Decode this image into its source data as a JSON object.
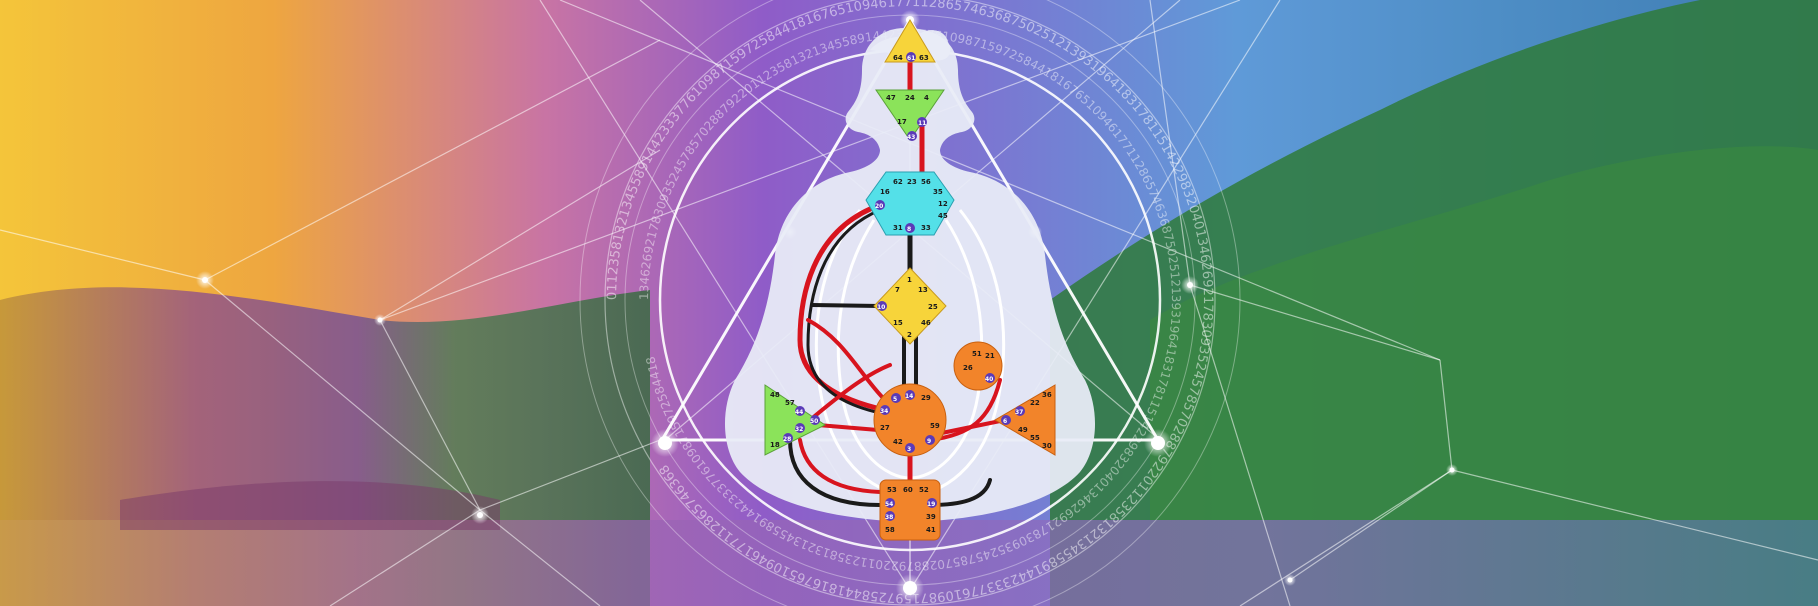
{
  "colors": {
    "sky_warm": "#f2c23a",
    "sky_violet": "#8a5ac8",
    "sky_blue": "#5a9ad8",
    "mountain_green": "#2d7a3a",
    "body_fill": "#e9ecf6",
    "channel_red": "#d8141e",
    "channel_black": "#1a1a1a",
    "center_yellow": "#f7d43a",
    "center_green": "#8be35a",
    "center_cyan": "#54e0e8",
    "center_orange": "#f2842a",
    "gate_badge": "#5a3ab8"
  },
  "number_ring": {
    "outer_text": "0112358132134558914423337761098715972584418167651094617711286574636875025121393196418317811514229832040134626921783093524578570288792201123581321345589144233377610987159725844181676510946177112865746368",
    "inner_text": "1346269217830935245785702887922011235813213455891442333776109871597258441816765109461771128657463687502512139319641831781151422983204013462692178309352457857028879220112358132134558914423337761098715972584418"
  },
  "centers": {
    "head": {
      "gates": [
        "64",
        "61",
        "63"
      ],
      "active": [
        "61"
      ]
    },
    "ajna": {
      "gates": [
        "47",
        "24",
        "4",
        "17",
        "43",
        "11"
      ],
      "active": [
        "43",
        "11"
      ]
    },
    "throat": {
      "gates": [
        "62",
        "23",
        "56",
        "16",
        "35",
        "20",
        "12",
        "45",
        "31",
        "8",
        "33"
      ],
      "active": [
        "20",
        "8"
      ]
    },
    "g": {
      "gates": [
        "1",
        "7",
        "13",
        "10",
        "25",
        "15",
        "46",
        "2"
      ],
      "active": [
        "10"
      ]
    },
    "heart": {
      "gates": [
        "51",
        "21",
        "26",
        "40"
      ],
      "active": [
        "40"
      ]
    },
    "spleen": {
      "gates": [
        "48",
        "57",
        "44",
        "50",
        "32",
        "28",
        "18"
      ],
      "active": [
        "44",
        "50",
        "32",
        "28"
      ]
    },
    "sacral": {
      "gates": [
        "5",
        "14",
        "29",
        "34",
        "27",
        "59",
        "42",
        "3",
        "9"
      ],
      "active": [
        "5",
        "14",
        "34",
        "3",
        "9"
      ]
    },
    "solar_plexus": {
      "gates": [
        "36",
        "22",
        "37",
        "6",
        "49",
        "55",
        "30"
      ],
      "active": [
        "37",
        "6"
      ]
    },
    "root": {
      "gates": [
        "53",
        "60",
        "52",
        "54",
        "19",
        "38",
        "39",
        "58",
        "41"
      ],
      "active": [
        "54",
        "19",
        "38"
      ]
    }
  }
}
